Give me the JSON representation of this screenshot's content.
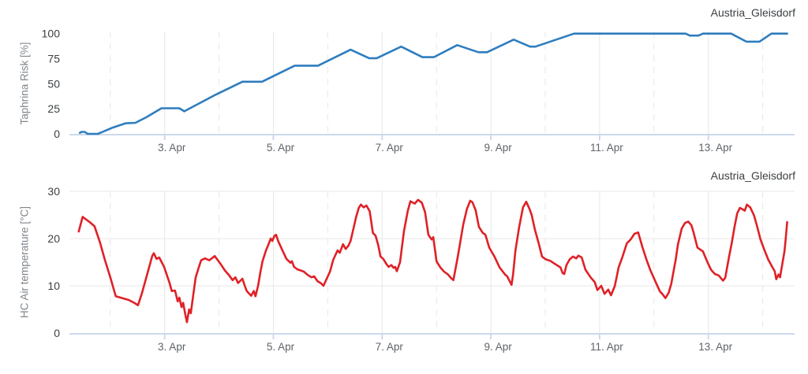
{
  "colors": {
    "risk_line": "#2e7dbe",
    "temperature_line": "#df2127",
    "axis_line": "#cdd9ec",
    "gridline": "#e7e7e7",
    "y_tick_label": "#3c4043",
    "x_tick_label": "#5f6368",
    "axis_title": "#80868b",
    "chart_title": "#3c4043",
    "background": "#ffffff"
  },
  "x_axis": {
    "unit": "date (April)",
    "xlim": [
      1.25,
      14.6
    ],
    "gridline_days": [
      2,
      3,
      4,
      5,
      6,
      7,
      8,
      9,
      10,
      11,
      12,
      13,
      14
    ],
    "ticks": [
      {
        "day": 3,
        "label": "3. Apr"
      },
      {
        "day": 5,
        "label": "5. Apr"
      },
      {
        "day": 7,
        "label": "7. Apr"
      },
      {
        "day": 9,
        "label": "9. Apr"
      },
      {
        "day": 11,
        "label": "11. Apr"
      },
      {
        "day": 13,
        "label": "13. Apr"
      }
    ]
  },
  "chart_data": [
    {
      "type": "line",
      "title": "Austria_Gleisdorf",
      "ylabel": "Taphrina Risk [%]",
      "xlabel": "",
      "y_ticks": [
        0,
        25,
        50,
        75,
        100
      ],
      "ylim": [
        0,
        102
      ],
      "grid": "vertical-only",
      "legend": "none",
      "series": [
        {
          "name": "Taphrina Risk",
          "color": "#2e7dbe",
          "points": [
            [
              1.44,
              1
            ],
            [
              1.47,
              2
            ],
            [
              1.53,
              2
            ],
            [
              1.58,
              0
            ],
            [
              1.77,
              0
            ],
            [
              2.03,
              6
            ],
            [
              2.28,
              10.5
            ],
            [
              2.46,
              11
            ],
            [
              2.66,
              16.5
            ],
            [
              2.94,
              25.5
            ],
            [
              3.27,
              25.5
            ],
            [
              3.36,
              22.5
            ],
            [
              3.9,
              38
            ],
            [
              4.43,
              52
            ],
            [
              4.79,
              52
            ],
            [
              5.39,
              68
            ],
            [
              5.82,
              68
            ],
            [
              6.42,
              84
            ],
            [
              6.76,
              75.5
            ],
            [
              6.9,
              75.5
            ],
            [
              7.35,
              87
            ],
            [
              7.74,
              76.5
            ],
            [
              7.95,
              76.5
            ],
            [
              8.38,
              88.5
            ],
            [
              8.77,
              81.5
            ],
            [
              8.93,
              81.5
            ],
            [
              9.42,
              94
            ],
            [
              9.72,
              87
            ],
            [
              9.82,
              87
            ],
            [
              10.53,
              100
            ],
            [
              12.58,
              100
            ],
            [
              12.66,
              98
            ],
            [
              12.82,
              98
            ],
            [
              12.9,
              100
            ],
            [
              13.42,
              100
            ],
            [
              13.7,
              92
            ],
            [
              13.94,
              92
            ],
            [
              14.16,
              100
            ],
            [
              14.45,
              100
            ]
          ]
        }
      ]
    },
    {
      "type": "line",
      "title": "Austria_Gleisdorf",
      "ylabel": "HC Air temperature [°C]",
      "xlabel": "",
      "y_ticks": [
        0,
        10,
        20,
        30
      ],
      "ylim": [
        0,
        30.5
      ],
      "grid": "both",
      "legend": "none",
      "series": [
        {
          "name": "HC Air temperature",
          "color": "#df2127",
          "points": [
            [
              1.42,
              21.5
            ],
            [
              1.49,
              24.6
            ],
            [
              1.56,
              24.0
            ],
            [
              1.63,
              23.4
            ],
            [
              1.71,
              22.6
            ],
            [
              1.81,
              19.2
            ],
            [
              1.9,
              15.5
            ],
            [
              2.0,
              11.8
            ],
            [
              2.1,
              7.8
            ],
            [
              2.22,
              7.4
            ],
            [
              2.34,
              7.0
            ],
            [
              2.44,
              6.4
            ],
            [
              2.51,
              5.9
            ],
            [
              2.58,
              8.4
            ],
            [
              2.69,
              12.9
            ],
            [
              2.77,
              16.3
            ],
            [
              2.8,
              16.9
            ],
            [
              2.85,
              15.7
            ],
            [
              2.9,
              16.0
            ],
            [
              2.99,
              14.0
            ],
            [
              3.09,
              10.6
            ],
            [
              3.13,
              8.9
            ],
            [
              3.19,
              9.0
            ],
            [
              3.24,
              6.7
            ],
            [
              3.27,
              7.5
            ],
            [
              3.31,
              5.5
            ],
            [
              3.34,
              6.4
            ],
            [
              3.38,
              3.9
            ],
            [
              3.41,
              2.3
            ],
            [
              3.45,
              5.0
            ],
            [
              3.48,
              4.2
            ],
            [
              3.53,
              8.4
            ],
            [
              3.57,
              11.8
            ],
            [
              3.63,
              14.0
            ],
            [
              3.67,
              15.4
            ],
            [
              3.74,
              15.8
            ],
            [
              3.82,
              15.4
            ],
            [
              3.92,
              16.3
            ],
            [
              4.03,
              14.6
            ],
            [
              4.11,
              13.2
            ],
            [
              4.18,
              12.3
            ],
            [
              4.25,
              11.2
            ],
            [
              4.3,
              11.8
            ],
            [
              4.35,
              10.6
            ],
            [
              4.43,
              11.5
            ],
            [
              4.47,
              10.1
            ],
            [
              4.51,
              8.9
            ],
            [
              4.59,
              7.9
            ],
            [
              4.64,
              8.9
            ],
            [
              4.67,
              7.8
            ],
            [
              4.72,
              10.1
            ],
            [
              4.76,
              12.9
            ],
            [
              4.8,
              15.2
            ],
            [
              4.86,
              17.4
            ],
            [
              4.91,
              18.8
            ],
            [
              4.95,
              20.0
            ],
            [
              4.98,
              19.5
            ],
            [
              5.02,
              20.6
            ],
            [
              5.05,
              20.8
            ],
            [
              5.09,
              19.4
            ],
            [
              5.17,
              17.4
            ],
            [
              5.24,
              15.7
            ],
            [
              5.31,
              14.9
            ],
            [
              5.34,
              15.2
            ],
            [
              5.38,
              14.0
            ],
            [
              5.44,
              13.5
            ],
            [
              5.56,
              13.0
            ],
            [
              5.63,
              12.3
            ],
            [
              5.7,
              11.8
            ],
            [
              5.75,
              12.0
            ],
            [
              5.81,
              11.0
            ],
            [
              5.88,
              10.5
            ],
            [
              5.92,
              10.0
            ],
            [
              6.04,
              13.0
            ],
            [
              6.1,
              15.5
            ],
            [
              6.18,
              17.5
            ],
            [
              6.22,
              17.0
            ],
            [
              6.28,
              18.8
            ],
            [
              6.33,
              17.8
            ],
            [
              6.38,
              18.5
            ],
            [
              6.42,
              19.5
            ],
            [
              6.47,
              22.0
            ],
            [
              6.52,
              24.5
            ],
            [
              6.57,
              26.5
            ],
            [
              6.61,
              27.2
            ],
            [
              6.66,
              26.6
            ],
            [
              6.71,
              27.0
            ],
            [
              6.77,
              25.8
            ],
            [
              6.83,
              21.2
            ],
            [
              6.88,
              20.6
            ],
            [
              6.93,
              18.5
            ],
            [
              6.97,
              16.2
            ],
            [
              7.02,
              15.7
            ],
            [
              7.08,
              14.6
            ],
            [
              7.12,
              14.0
            ],
            [
              7.17,
              14.4
            ],
            [
              7.21,
              13.8
            ],
            [
              7.24,
              14.0
            ],
            [
              7.27,
              13.1
            ],
            [
              7.33,
              15.0
            ],
            [
              7.4,
              21.5
            ],
            [
              7.47,
              25.8
            ],
            [
              7.52,
              27.9
            ],
            [
              7.6,
              27.4
            ],
            [
              7.66,
              28.2
            ],
            [
              7.73,
              27.6
            ],
            [
              7.79,
              25.6
            ],
            [
              7.85,
              20.8
            ],
            [
              7.91,
              19.8
            ],
            [
              7.94,
              20.3
            ],
            [
              8.0,
              15.2
            ],
            [
              8.07,
              13.9
            ],
            [
              8.14,
              13.0
            ],
            [
              8.21,
              12.4
            ],
            [
              8.27,
              11.6
            ],
            [
              8.31,
              11.2
            ],
            [
              8.39,
              16.1
            ],
            [
              8.49,
              22.9
            ],
            [
              8.56,
              26.3
            ],
            [
              8.62,
              28.0
            ],
            [
              8.66,
              27.7
            ],
            [
              8.72,
              26.0
            ],
            [
              8.78,
              22.5
            ],
            [
              8.85,
              21.2
            ],
            [
              8.9,
              20.8
            ],
            [
              8.97,
              18.1
            ],
            [
              9.07,
              16.1
            ],
            [
              9.16,
              13.9
            ],
            [
              9.26,
              12.4
            ],
            [
              9.3,
              12.0
            ],
            [
              9.38,
              10.2
            ],
            [
              9.41,
              12.5
            ],
            [
              9.45,
              17.3
            ],
            [
              9.52,
              22.4
            ],
            [
              9.59,
              26.6
            ],
            [
              9.65,
              27.8
            ],
            [
              9.71,
              26.3
            ],
            [
              9.75,
              25.0
            ],
            [
              9.81,
              21.9
            ],
            [
              9.88,
              19.0
            ],
            [
              9.94,
              16.2
            ],
            [
              10.01,
              15.6
            ],
            [
              10.09,
              15.3
            ],
            [
              10.17,
              14.7
            ],
            [
              10.28,
              13.9
            ],
            [
              10.32,
              12.7
            ],
            [
              10.35,
              12.5
            ],
            [
              10.39,
              14.4
            ],
            [
              10.45,
              15.6
            ],
            [
              10.51,
              16.2
            ],
            [
              10.57,
              15.8
            ],
            [
              10.61,
              16.4
            ],
            [
              10.67,
              16.0
            ],
            [
              10.74,
              13.4
            ],
            [
              10.84,
              11.7
            ],
            [
              10.91,
              10.8
            ],
            [
              10.96,
              9.1
            ],
            [
              11.03,
              10.0
            ],
            [
              11.09,
              8.3
            ],
            [
              11.16,
              9.2
            ],
            [
              11.21,
              8.0
            ],
            [
              11.28,
              10.0
            ],
            [
              11.35,
              13.9
            ],
            [
              11.42,
              16.1
            ],
            [
              11.5,
              19.0
            ],
            [
              11.57,
              19.8
            ],
            [
              11.64,
              21.0
            ],
            [
              11.71,
              21.3
            ],
            [
              11.79,
              18.1
            ],
            [
              11.86,
              15.6
            ],
            [
              11.93,
              13.4
            ],
            [
              12.03,
              10.8
            ],
            [
              12.11,
              8.8
            ],
            [
              12.16,
              8.2
            ],
            [
              12.21,
              7.4
            ],
            [
              12.27,
              8.5
            ],
            [
              12.32,
              10.5
            ],
            [
              12.4,
              15.6
            ],
            [
              12.44,
              18.7
            ],
            [
              12.51,
              22.1
            ],
            [
              12.57,
              23.3
            ],
            [
              12.63,
              23.6
            ],
            [
              12.69,
              22.8
            ],
            [
              12.73,
              21.2
            ],
            [
              12.8,
              18.1
            ],
            [
              12.86,
              17.6
            ],
            [
              12.9,
              17.3
            ],
            [
              12.98,
              15.1
            ],
            [
              13.05,
              13.4
            ],
            [
              13.12,
              12.5
            ],
            [
              13.19,
              12.2
            ],
            [
              13.27,
              11.1
            ],
            [
              13.31,
              11.7
            ],
            [
              13.38,
              16.1
            ],
            [
              13.43,
              19.0
            ],
            [
              13.48,
              22.4
            ],
            [
              13.53,
              25.3
            ],
            [
              13.58,
              26.5
            ],
            [
              13.63,
              26.2
            ],
            [
              13.67,
              25.9
            ],
            [
              13.71,
              27.2
            ],
            [
              13.77,
              26.6
            ],
            [
              13.84,
              24.9
            ],
            [
              13.89,
              22.9
            ],
            [
              13.96,
              19.8
            ],
            [
              14.03,
              17.6
            ],
            [
              14.1,
              15.6
            ],
            [
              14.18,
              13.9
            ],
            [
              14.22,
              13.1
            ],
            [
              14.25,
              11.4
            ],
            [
              14.29,
              12.4
            ],
            [
              14.32,
              11.8
            ],
            [
              14.35,
              13.9
            ],
            [
              14.4,
              17.3
            ],
            [
              14.42,
              19.5
            ],
            [
              14.45,
              23.5
            ]
          ]
        }
      ]
    }
  ]
}
